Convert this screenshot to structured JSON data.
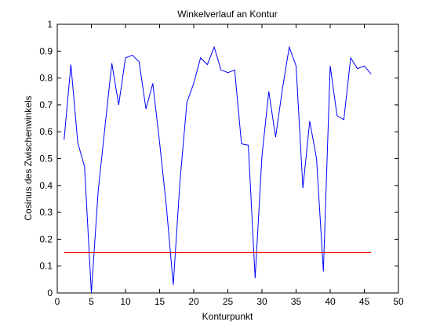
{
  "chart_data": {
    "type": "line",
    "title": "Winkelverlauf an Kontur",
    "xlabel": "Konturpunkt",
    "ylabel": "Cosinus des Zwischenwinkels",
    "xlim": [
      0,
      50
    ],
    "ylim": [
      0,
      1
    ],
    "xticks": [
      0,
      5,
      10,
      15,
      20,
      25,
      30,
      35,
      40,
      45,
      50
    ],
    "yticks": [
      0,
      0.1,
      0.2,
      0.3,
      0.4,
      0.5,
      0.6,
      0.7,
      0.8,
      0.9,
      1
    ],
    "grid": false,
    "legend": "none",
    "series": [
      {
        "color": "#0000ff",
        "x": [
          1,
          2,
          3,
          4,
          5,
          6,
          7,
          8,
          9,
          10,
          11,
          12,
          13,
          14,
          15,
          16,
          17,
          18,
          19,
          20,
          21,
          22,
          23,
          24,
          25,
          26,
          27,
          28,
          29,
          30,
          31,
          32,
          33,
          34,
          35,
          36,
          37,
          38,
          39,
          40,
          41,
          42,
          43,
          44,
          45,
          46
        ],
        "y": [
          0.57,
          0.85,
          0.56,
          0.47,
          0.0,
          0.38,
          0.62,
          0.855,
          0.7,
          0.875,
          0.885,
          0.86,
          0.685,
          0.78,
          0.56,
          0.32,
          0.03,
          0.42,
          0.71,
          0.78,
          0.875,
          0.85,
          0.915,
          0.83,
          0.82,
          0.83,
          0.555,
          0.55,
          0.055,
          0.51,
          0.75,
          0.58,
          0.76,
          0.915,
          0.845,
          0.39,
          0.64,
          0.5,
          0.08,
          0.845,
          0.66,
          0.645,
          0.875,
          0.835,
          0.845,
          0.815
        ]
      },
      {
        "color": "#ff0000",
        "x": [
          1,
          46
        ],
        "y": [
          0.15,
          0.15
        ]
      }
    ]
  }
}
